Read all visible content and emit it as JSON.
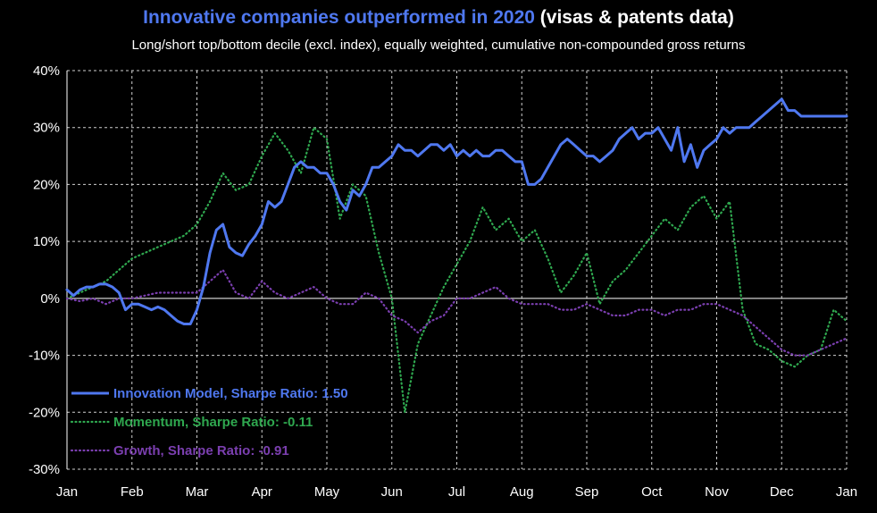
{
  "title_part1": "Innovative companies outperformed in 2020",
  "title_part2": " (visas & patents data)",
  "subtitle": "Long/short top/bottom decile (excl. index), equally weighted, cumulative non-compounded gross returns",
  "chart_data": {
    "type": "line",
    "title": "Innovative companies outperformed in 2020 (visas & patents data)",
    "subtitle": "Long/short top/bottom decile (excl. index), equally weighted, cumulative non-compounded gross returns",
    "x_ticks": [
      "Jan",
      "Feb",
      "Mar",
      "Apr",
      "May",
      "Jun",
      "Jul",
      "Aug",
      "Sep",
      "Oct",
      "Nov",
      "Dec",
      "Jan"
    ],
    "y_ticks": [
      "-30%",
      "-20%",
      "-10%",
      "0%",
      "10%",
      "20%",
      "30%",
      "40%"
    ],
    "ylim": [
      -30,
      40
    ],
    "xlim": [
      0,
      12
    ],
    "grid": true,
    "legend_position": "bottom-left",
    "series": [
      {
        "name": "Innovation Model, Sharpe Ratio: 1.50",
        "color": "#4f78f0",
        "style": "solid",
        "x": [
          0,
          0.1,
          0.2,
          0.3,
          0.4,
          0.5,
          0.6,
          0.7,
          0.8,
          0.9,
          1.0,
          1.1,
          1.2,
          1.3,
          1.4,
          1.5,
          1.6,
          1.7,
          1.8,
          1.9,
          2.0,
          2.1,
          2.2,
          2.3,
          2.4,
          2.5,
          2.6,
          2.7,
          2.8,
          2.9,
          3.0,
          3.1,
          3.2,
          3.3,
          3.4,
          3.5,
          3.6,
          3.7,
          3.8,
          3.9,
          4.0,
          4.1,
          4.2,
          4.3,
          4.4,
          4.5,
          4.6,
          4.7,
          4.8,
          4.9,
          5.0,
          5.1,
          5.2,
          5.3,
          5.4,
          5.5,
          5.6,
          5.7,
          5.8,
          5.9,
          6.0,
          6.1,
          6.2,
          6.3,
          6.4,
          6.5,
          6.6,
          6.7,
          6.8,
          6.9,
          7.0,
          7.1,
          7.2,
          7.3,
          7.4,
          7.5,
          7.6,
          7.7,
          7.8,
          7.9,
          8.0,
          8.1,
          8.2,
          8.3,
          8.4,
          8.5,
          8.6,
          8.7,
          8.8,
          8.9,
          9.0,
          9.1,
          9.2,
          9.3,
          9.4,
          9.5,
          9.6,
          9.7,
          9.8,
          9.9,
          10.0,
          10.1,
          10.2,
          10.3,
          10.4,
          10.5,
          10.6,
          10.7,
          10.8,
          10.9,
          11.0,
          11.1,
          11.2,
          11.3,
          11.4,
          11.5,
          11.6,
          11.7,
          11.8,
          11.9,
          12.0
        ],
        "values": [
          1.5,
          0.5,
          1.5,
          2,
          2,
          2.5,
          2.5,
          2,
          1,
          -2,
          -1,
          -1,
          -1.5,
          -2,
          -1.5,
          -2,
          -3,
          -4,
          -4.5,
          -4.5,
          -2,
          2,
          8,
          12,
          13,
          9,
          8,
          7.5,
          9.5,
          11,
          13,
          17,
          16,
          17,
          20,
          23,
          24,
          23,
          23,
          22,
          22,
          20,
          17,
          15.5,
          19,
          18,
          20,
          23,
          23,
          24,
          25,
          27,
          26,
          26,
          25,
          26,
          27,
          27,
          26,
          27,
          25,
          26,
          25,
          26,
          25,
          25,
          26,
          26,
          25,
          24,
          24,
          20,
          20,
          21,
          23,
          25,
          27,
          28,
          27,
          26,
          25,
          25,
          24,
          25,
          26,
          28,
          29,
          30,
          28,
          29,
          29,
          30,
          28,
          26,
          30,
          24,
          27,
          23,
          26,
          27,
          28,
          30,
          29,
          30,
          30,
          30,
          31,
          32,
          33,
          34,
          35,
          33,
          33,
          32,
          32,
          32,
          32,
          32,
          32,
          32,
          32
        ],
        "values_note": ""
      },
      {
        "name": "Momentum, Sharpe Ratio: -0.11",
        "color": "#2fa84f",
        "style": "dotted",
        "x": [
          0,
          0.2,
          0.4,
          0.6,
          0.8,
          1.0,
          1.2,
          1.4,
          1.6,
          1.8,
          2.0,
          2.2,
          2.4,
          2.6,
          2.8,
          3.0,
          3.2,
          3.4,
          3.6,
          3.8,
          4.0,
          4.2,
          4.4,
          4.6,
          4.8,
          5.0,
          5.2,
          5.4,
          5.6,
          5.8,
          6.0,
          6.2,
          6.4,
          6.6,
          6.8,
          7.0,
          7.2,
          7.4,
          7.6,
          7.8,
          8.0,
          8.2,
          8.4,
          8.6,
          8.8,
          9.0,
          9.2,
          9.4,
          9.6,
          9.8,
          10.0,
          10.2,
          10.4,
          10.6,
          10.8,
          11.0,
          11.2,
          11.4,
          11.6,
          11.8,
          12.0
        ],
        "values": [
          0,
          1,
          2,
          3,
          5,
          7,
          8,
          9,
          10,
          11,
          13,
          17,
          22,
          19,
          20,
          25,
          29,
          26,
          22,
          30,
          28,
          14,
          20,
          18,
          8,
          0,
          -20,
          -8,
          -3,
          2,
          6,
          10,
          16,
          12,
          14,
          10,
          12,
          7,
          1,
          4,
          8,
          -1,
          3,
          5,
          8,
          11,
          14,
          12,
          16,
          18,
          14,
          17,
          -2,
          -8,
          -9,
          -11,
          -12,
          -10,
          -9,
          -2,
          -4
        ]
      },
      {
        "name": "Growth, Sharpe Ratio: -0.91",
        "color": "#7b3fb0",
        "style": "dotted",
        "x": [
          0,
          0.2,
          0.4,
          0.6,
          0.8,
          1.0,
          1.2,
          1.4,
          1.6,
          1.8,
          2.0,
          2.2,
          2.4,
          2.6,
          2.8,
          3.0,
          3.2,
          3.4,
          3.6,
          3.8,
          4.0,
          4.2,
          4.4,
          4.6,
          4.8,
          5.0,
          5.2,
          5.4,
          5.6,
          5.8,
          6.0,
          6.2,
          6.4,
          6.6,
          6.8,
          7.0,
          7.2,
          7.4,
          7.6,
          7.8,
          8.0,
          8.2,
          8.4,
          8.6,
          8.8,
          9.0,
          9.2,
          9.4,
          9.6,
          9.8,
          10.0,
          10.2,
          10.4,
          10.6,
          10.8,
          11.0,
          11.2,
          11.4,
          11.6,
          11.8,
          12.0
        ],
        "values": [
          0,
          -0.5,
          0,
          -1,
          0,
          0,
          0.5,
          1,
          1,
          1,
          1,
          3,
          5,
          1,
          0,
          3,
          1,
          0,
          1,
          2,
          0,
          -1,
          -1,
          1,
          0,
          -3,
          -4,
          -6,
          -4,
          -3,
          0,
          0,
          1,
          2,
          0,
          -1,
          -1,
          -1,
          -2,
          -2,
          -1,
          -2,
          -3,
          -3,
          -2,
          -2,
          -3,
          -2,
          -2,
          -1,
          -1,
          -2,
          -3,
          -5,
          -7,
          -9,
          -10,
          -10,
          -9,
          -8,
          -7
        ]
      }
    ]
  }
}
